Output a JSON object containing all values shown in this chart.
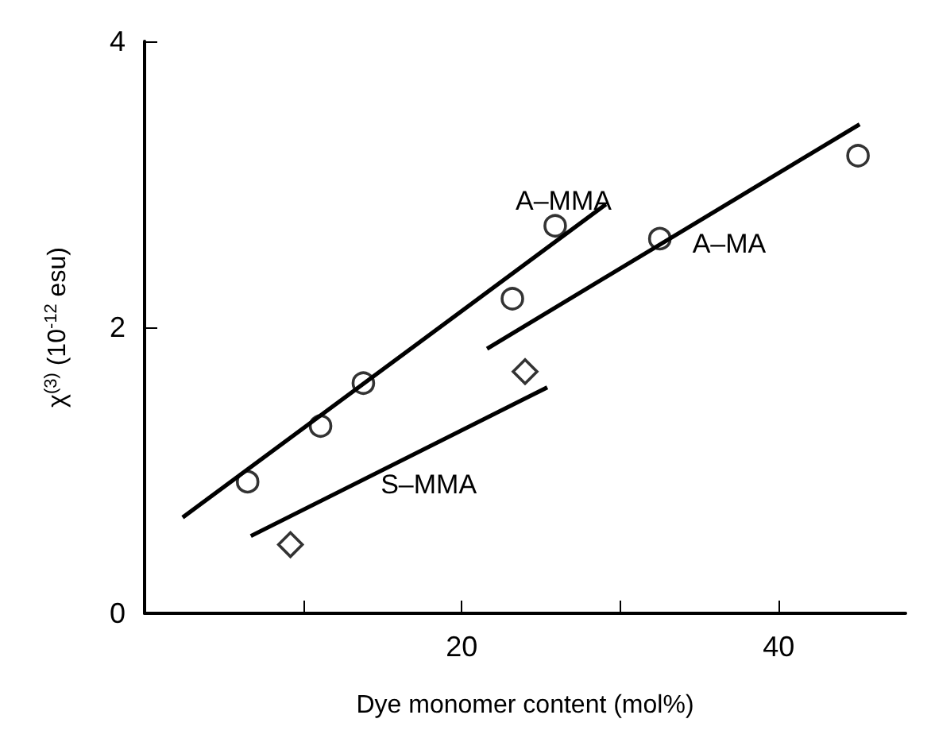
{
  "chart_data": {
    "type": "scatter",
    "xlabel": "Dye monomer content (mol%)",
    "ylabel": "χ$^{(3)}$ (10$^{-12}$ esu)",
    "xlim": [
      0,
      48
    ],
    "xticks": [
      {
        "value": 10,
        "label": null
      },
      20,
      {
        "value": 30,
        "label": null
      },
      40
    ],
    "ylim": [
      0,
      4
    ],
    "yticks": [
      0,
      2,
      4
    ],
    "grid": false,
    "legend": false,
    "series": [
      {
        "marker": "circle",
        "color": "#000000",
        "x": [
          6.5,
          11.1,
          13.8,
          23.2,
          25.9
        ],
        "values": [
          0.92,
          1.31,
          1.61,
          2.2,
          2.71
        ]
      },
      {
        "marker": "circle",
        "color": "#000000",
        "x": [
          32.5,
          45.0
        ],
        "values": [
          2.62,
          3.2
        ]
      },
      {
        "marker": "diamond",
        "color": "#000000",
        "x": [
          9.2,
          24.0
        ],
        "values": [
          0.48,
          1.69
        ]
      },
      {
        "type": "line",
        "name": "A–MMA",
        "marker": "none",
        "color": "#000000",
        "x": [
          2.4,
          29.1
        ],
        "values": [
          0.67,
          2.86
        ]
      },
      {
        "type": "line",
        "name": "A–MA",
        "marker": "none",
        "color": "#000000",
        "x": [
          21.6,
          45.1
        ],
        "values": [
          1.85,
          3.42
        ]
      },
      {
        "type": "line",
        "name": "S–MMA",
        "marker": "none",
        "color": "#000000",
        "x": [
          6.7,
          25.4
        ],
        "values": [
          0.54,
          1.58
        ]
      }
    ]
  }
}
